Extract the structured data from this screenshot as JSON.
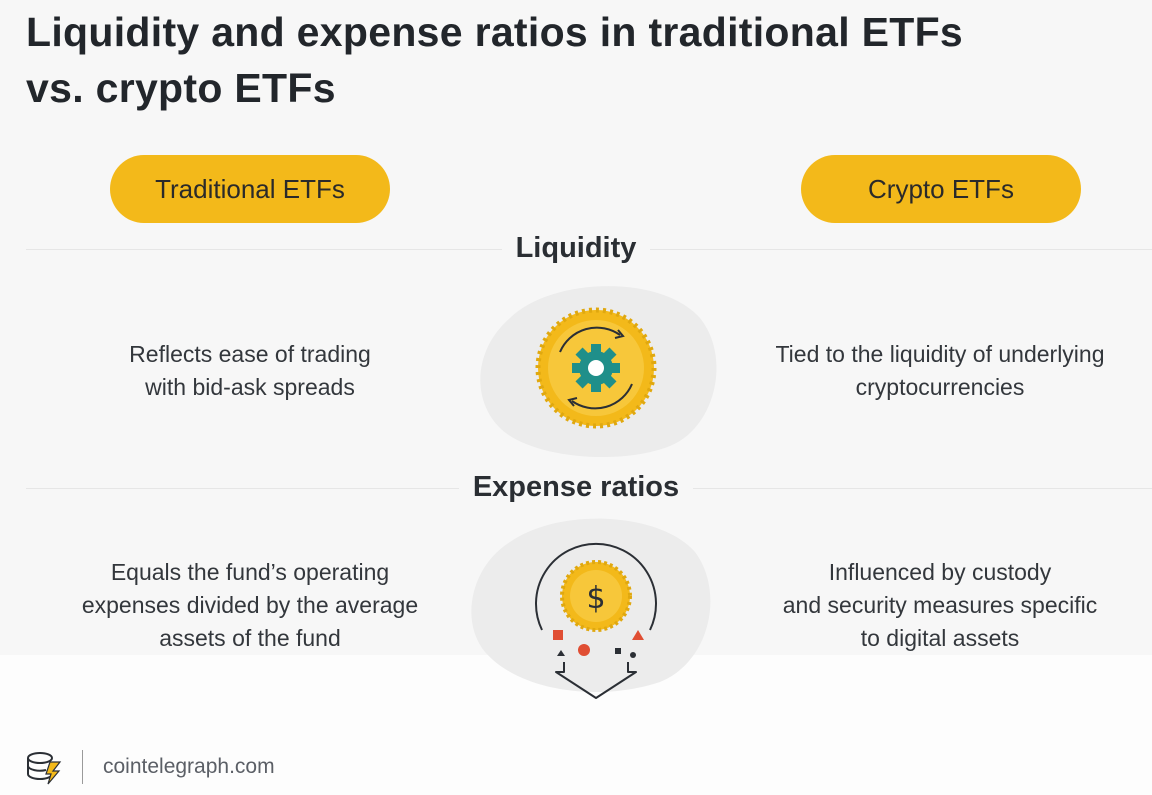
{
  "title": {
    "line1": "Liquidity and expense ratios in traditional ETFs",
    "line2": "vs. crypto ETFs"
  },
  "columns": {
    "left": "Traditional ETFs",
    "right": "Crypto ETFs"
  },
  "sections": [
    {
      "heading": "Liquidity",
      "left_lines": [
        "Reflects ease of trading",
        "with bid-ask spreads"
      ],
      "right_lines": [
        "Tied to the liquidity of underlying",
        "cryptocurrencies"
      ],
      "icon": "gear-coin-icon"
    },
    {
      "heading": "Expense ratios",
      "left_lines": [
        "Equals the fund’s operating",
        "expenses divided by the average",
        "assets of the fund"
      ],
      "right_lines": [
        "Influenced by custody",
        "and security measures specific",
        "to digital assets"
      ],
      "icon": "dollar-coin-funnel-icon"
    }
  ],
  "footer": {
    "logo_icon": "cointelegraph-logo-icon",
    "site": "cointelegraph.com"
  },
  "colors": {
    "accent": "#f3b91a",
    "teal": "#1f8f8a",
    "panel": "#f7f7f7"
  }
}
